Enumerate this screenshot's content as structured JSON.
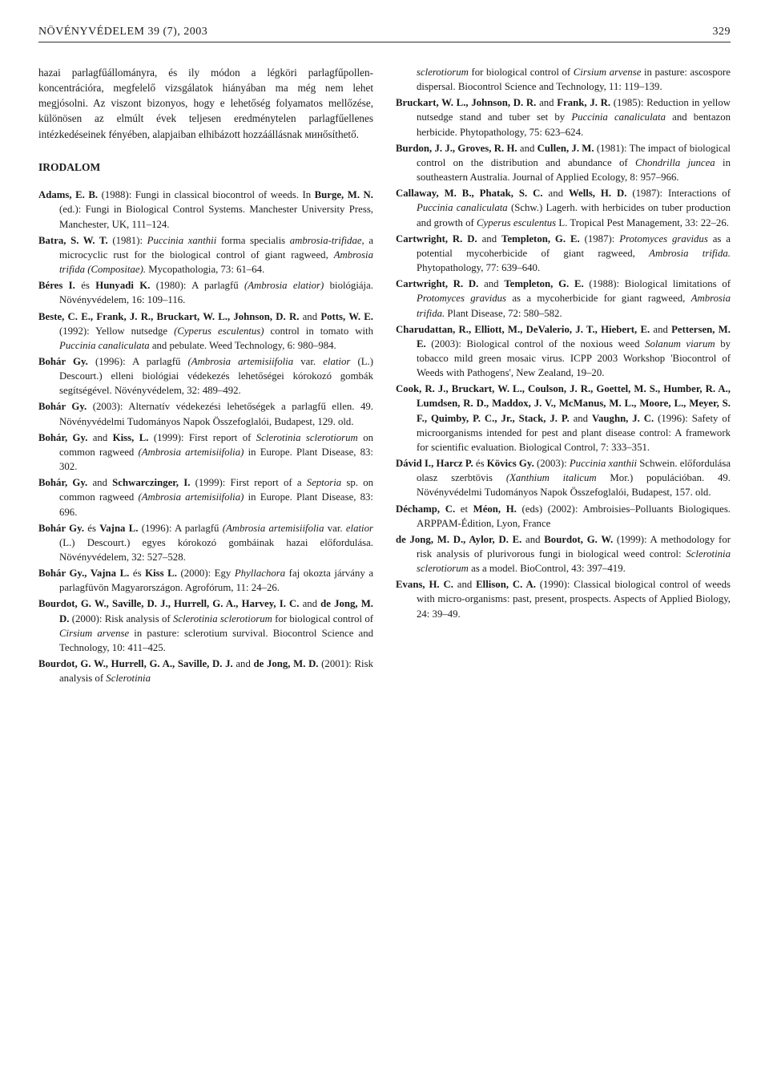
{
  "header": {
    "journal": "NÖVÉNYVÉDELEM 39 (7), 2003",
    "page": "329"
  },
  "intro1": "hazai parlagfűállományra, és ily módon a légköri parlagfűpollen-koncentrációra, megfelelő vizsgálatok hiányában ma még nem lehet megjósolni. Az viszont bizonyos, hogy e lehetőség folyamatos mellőzése, különösen az elmúlt évek teljesen eredménytelen parlagfűellenes intézkedéseinek fényében, alapjaiban elhibázott hozzáállásnak минősíthető.",
  "section": "IRODALOM",
  "refs_left": [
    "<b>Adams, E. B.</b> (1988): Fungi in classical biocontrol of weeds. In <b>Burge, M. N.</b> (ed.): Fungi in Biological Control Systems. Manchester University Press, Manchester, UK, 111–124.",
    "<b>Batra, S. W. T.</b> (1981): <i>Puccinia xanthii</i> forma specialis <i>ambrosia-trifidae,</i> a microcyclic rust for the biological control of giant ragweed, <i>Ambrosia trifida (Compositae).</i> Mycopathologia, 73: 61–64.",
    "<b>Béres I.</b> és <b>Hunyadi K.</b> (1980): A parlagfű <i>(Ambrosia elatior)</i> biológiája. Növényvédelem, 16: 109–116.",
    "<b>Beste, C. E., Frank, J. R., Bruckart, W. L., Johnson, D. R.</b> and <b>Potts, W. E.</b> (1992): Yellow nutsedge <i>(Cyperus esculentus)</i> control in tomato with <i>Puccinia canaliculata</i> and pebulate. Weed Technology, 6: 980–984.",
    "<b>Bohár Gy.</b> (1996): A parlagfű <i>(Ambrosia artemisiifolia</i> var. <i>elatior</i> (L.) Descourt.) elleni biológiai védekezés lehetőségei kórokozó gombák segítségével. Növényvédelem, 32: 489–492.",
    "<b>Bohár Gy.</b> (2003): Alternatív védekezési lehetőségek a parlagfű ellen. 49. Növényvédelmi Tudományos Napok Összefoglalói, Budapest, 129. old.",
    "<b>Bohár, Gy.</b> and <b>Kiss, L.</b> (1999): First report of <i>Sclerotinia sclerotiorum</i> on common ragweed <i>(Ambrosia artemisiifolia)</i> in Europe. Plant Disease, 83: 302.",
    "<b>Bohár, Gy.</b> and <b>Schwarczinger, I.</b> (1999): First report of a <i>Septoria</i> sp. on common ragweed <i>(Ambrosia artemisiifolia)</i> in Europe. Plant Disease, 83: 696.",
    "<b>Bohár Gy.</b> és <b>Vajna L.</b> (1996): A parlagfű <i>(Ambrosia artemisiifolia</i> var. <i>elatior</i> (L.) Descourt.) egyes kórokozó gombáinak hazai előfordulása. Növényvédelem, 32: 527–528.",
    "<b>Bohár Gy., Vajna L.</b> és <b>Kiss L.</b> (2000): Egy <i>Phyllachora</i> faj okozta járvány a parlagfüvön Magyarországon. Agrofórum, 11: 24–26.",
    "<b>Bourdot, G. W., Saville, D. J., Hurrell, G. A., Harvey, I. C.</b> and <b>de Jong, M. D.</b> (2000): Risk analysis of <i>Sclerotinia sclerotiorum</i> for biological control of <i>Cirsium arvense</i> in pasture: sclerotium survival. Biocontrol Science and Technology, 10: 411–425.",
    "<b>Bourdot, G. W., Hurrell, G. A., Saville, D. J.</b> and <b>de Jong, M. D.</b> (2001): Risk analysis of <i>Sclerotinia</i>"
  ],
  "refs_right": [
    "<span style='padding-left:26px;display:inline-block;text-indent:0'><i>sclerotiorum</i> for biological control of <i>Cirsium arvense</i> in pasture: ascospore dispersal. Biocontrol Science and Technology, 11: 119–139.</span>",
    "<b>Bruckart, W. L., Johnson, D. R.</b> and <b>Frank, J. R.</b> (1985): Reduction in yellow nutsedge stand and tuber set by <i>Puccinia canaliculata</i> and bentazon herbicide. Phytopathology, 75: 623–624.",
    "<b>Burdon, J. J., Groves, R. H.</b> and <b>Cullen, J. M.</b> (1981): The impact of biological control on the distribution and abundance of <i>Chondrilla juncea</i> in southeastern Australia. Journal of Applied Ecology, 8: 957–966.",
    "<b>Callaway, M. B., Phatak, S. C.</b> and <b>Wells, H. D.</b> (1987): Interactions of <i>Puccinia canaliculata</i> (Schw.) Lagerh. with herbicides on tuber production and growth of <i>Cyperus esculentus</i> L. Tropical Pest Management, 33: 22–26.",
    "<b>Cartwright, R. D.</b> and <b>Templeton, G. E.</b> (1987): <i>Protomyces gravidus</i> as a potential mycoherbicide of giant ragweed, <i>Ambrosia trifida.</i> Phytopathology, 77: 639–640.",
    "<b>Cartwright, R. D.</b> and <b>Templeton, G. E.</b> (1988): Biological limitations of <i>Protomyces gravidus</i> as a mycoherbicide for giant ragweed, <i>Ambrosia trifida.</i> Plant Disease, 72: 580–582.",
    "<b>Charudattan, R., Elliott, M., DeValerio, J. T., Hiebert, E.</b> and <b>Pettersen, M. E.</b> (2003): Biological control of the noxious weed <i>Solanum viarum</i> by tobacco mild green mosaic virus. ICPP 2003 Workshop 'Biocontrol of Weeds with Pathogens', New Zealand, 19–20.",
    "<b>Cook, R. J., Bruckart, W. L., Coulson, J. R., Goettel, M. S., Humber, R. A., Lumdsen, R. D., Maddox, J. V., McManus, M. L., Moore, L., Meyer, S. F., Quimby, P. C., Jr., Stack, J. P.</b> and <b>Vaughn, J. C.</b> (1996): Safety of microorganisms intended for pest and plant disease control: A framework for scientific evaluation. Biological Control, 7: 333–351.",
    "<b>Dávid I., Harcz P.</b> és <b>Kövics Gy.</b> (2003): <i>Puccinia xanthii</i> Schwein. előfordulása olasz szerbtövis <i>(Xanthium italicum</i> Mor.) populációban. 49. Növényvédelmi Tudományos Napok Összefoglalói, Budapest, 157. old.",
    "<b>Déchamp, C.</b> et <b>Méon, H.</b> (eds) (2002): Ambroisies–Polluants Biologiques. ARPPAM-Édition, Lyon, France",
    "<b>de Jong, M. D., Aylor, D. E.</b> and <b>Bourdot, G. W.</b> (1999): A methodology for risk analysis of plurivorous fungi in biological weed control: <i>Sclerotinia sclerotiorum</i> as a model. BioControl, 43: 397–419.",
    "<b>Evans, H. C.</b> and <b>Ellison, C. A.</b> (1990): Classical biological control of weeds with micro-organisms: past, present, prospects. Aspects of Applied Biology, 24: 39–49."
  ]
}
